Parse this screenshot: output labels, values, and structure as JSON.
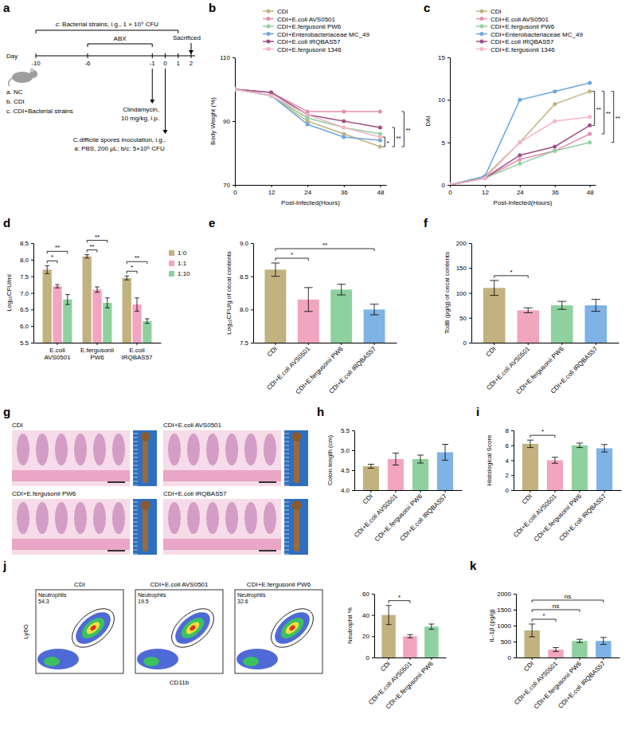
{
  "chart_data": [
    {
      "panel": "a",
      "type": "diagram",
      "groups": [
        "a. NC",
        "b. CDI",
        "c. CDI+Bacterial strains"
      ],
      "day_label": "Day",
      "days": [
        -10,
        -6,
        -1,
        0,
        1,
        2
      ],
      "treatment": "c: Bacterial strains, i.g., 1 × 10⁹ CFU",
      "abx": "ABX",
      "clindamycin": [
        "Clindamycin,",
        "10 mg/kg, i.p."
      ],
      "inoculation": [
        "C.difficile spores inoculation, i.g.,",
        "a: PBS, 200 μL; b/c: 5×10⁶ CFU"
      ],
      "sacrificed": "Sacrificed"
    },
    {
      "panel": "b",
      "type": "line",
      "x_label": "Post-Infected(Hours)",
      "y_label": "Body Weight (%)",
      "x": [
        0,
        12,
        24,
        36,
        48
      ],
      "xlim": [
        0,
        50
      ],
      "xticks": [
        0,
        12,
        24,
        36,
        48
      ],
      "ylim": [
        70,
        110
      ],
      "yticks": [
        70,
        90,
        110
      ],
      "legend": "top",
      "series": [
        {
          "name": "CDI",
          "color": "#c2b280",
          "values": [
            100,
            98,
            90,
            86,
            82
          ]
        },
        {
          "name": "CDI+E.coli AVS0501",
          "color": "#e68fb0",
          "values": [
            100,
            99,
            93,
            93,
            93
          ]
        },
        {
          "name": "CDI+E.fergusonii PW6",
          "color": "#8fd19e",
          "values": [
            100,
            98,
            91,
            88,
            86
          ]
        },
        {
          "name": "CDI+Enterobacteriaceae MC_49",
          "color": "#6ca6dd",
          "values": [
            100,
            98,
            89,
            85,
            84
          ]
        },
        {
          "name": "CDI+E.coli IRQBAS57",
          "color": "#a24f86",
          "values": [
            100,
            99,
            92,
            90,
            88
          ]
        },
        {
          "name": "CDI+E.fergusonii 1346",
          "color": "#f5b5c8",
          "values": [
            100,
            98,
            92,
            88,
            85
          ]
        }
      ],
      "significance": [
        {
          "pair": [
            0,
            5
          ],
          "label": "*"
        },
        {
          "pair": [
            0,
            4
          ],
          "label": "**"
        },
        {
          "pair": [
            0,
            1
          ],
          "label": "**"
        }
      ]
    },
    {
      "panel": "c",
      "type": "line",
      "x_label": "Post-Infected(Hours)",
      "y_label": "DAI",
      "x": [
        0,
        12,
        24,
        36,
        48
      ],
      "xlim": [
        0,
        50
      ],
      "xticks": [
        0,
        12,
        24,
        36,
        48
      ],
      "ylim": [
        0,
        15
      ],
      "yticks": [
        0,
        5,
        10,
        15
      ],
      "legend": "top",
      "series": [
        {
          "name": "CDI",
          "color": "#c2b280",
          "values": [
            0,
            1,
            5,
            9.5,
            11
          ]
        },
        {
          "name": "CDI+E.coli AVS0501",
          "color": "#e68fb0",
          "values": [
            0,
            0.8,
            3,
            4,
            6
          ]
        },
        {
          "name": "CDI+E.fergusonii PW6",
          "color": "#8fd19e",
          "values": [
            0,
            0.8,
            2.5,
            4,
            5
          ]
        },
        {
          "name": "CDI+Enterobacteriaceae MC_49",
          "color": "#6ca6dd",
          "values": [
            0,
            1,
            10,
            11,
            12
          ]
        },
        {
          "name": "CDI+E.coli IRQBAS57",
          "color": "#a24f86",
          "values": [
            0,
            0.8,
            3.5,
            4.5,
            7
          ]
        },
        {
          "name": "CDI+E.fergusonii 1346",
          "color": "#f5b5c8",
          "values": [
            0,
            0.8,
            5,
            7.5,
            8
          ]
        }
      ],
      "significance": [
        {
          "pair": [
            0,
            4
          ],
          "label": "**"
        },
        {
          "pair": [
            0,
            1
          ],
          "label": "**"
        },
        {
          "pair": [
            0,
            2
          ],
          "label": "**"
        }
      ]
    },
    {
      "panel": "d",
      "type": "bar",
      "y_label": "Log₁₀CFU/ml",
      "categories": [
        "E.coli AVS0501",
        "E.fergusonii PW6",
        "E.coli IRQBAS57"
      ],
      "ylim": [
        5.5,
        8.5
      ],
      "yticks": [
        5.5,
        {
          "value": 6,
          "label": "6.0"
        },
        6.5,
        {
          "value": 7,
          "label": "7.0"
        },
        7.5,
        {
          "value": 8,
          "label": "8.0"
        },
        8.5
      ],
      "legend": "right",
      "series": [
        {
          "name": "1:0",
          "color": "#c2b280",
          "values": [
            7.7,
            8.1,
            7.45
          ],
          "errors": [
            0.12,
            0.05,
            0.06
          ]
        },
        {
          "name": "1:1",
          "color": "#f2a5c0",
          "values": [
            7.2,
            7.1,
            6.65
          ],
          "errors": [
            0.05,
            0.08,
            0.2
          ]
        },
        {
          "name": "1:10",
          "color": "#8fd19e",
          "values": [
            6.8,
            6.7,
            6.15
          ],
          "errors": [
            0.15,
            0.15,
            0.07
          ]
        }
      ],
      "significance": [
        {
          "category": 0,
          "pair": [
            0,
            1
          ],
          "label": "*"
        },
        {
          "category": 0,
          "pair": [
            0,
            2
          ],
          "label": "**"
        },
        {
          "category": 1,
          "pair": [
            0,
            1
          ],
          "label": "**"
        },
        {
          "category": 1,
          "pair": [
            0,
            2
          ],
          "label": "**"
        },
        {
          "category": 2,
          "pair": [
            0,
            1
          ],
          "label": "*"
        },
        {
          "category": 2,
          "pair": [
            0,
            2
          ],
          "label": "**"
        }
      ]
    },
    {
      "panel": "e",
      "type": "bar",
      "y_label": "Log₁₀CFU/g of cecal contents",
      "categories": [
        "CDI",
        "CDI+E.coli AVS0501",
        "CDI+E.fergusonii PW6",
        "CDI+E.coli IRQBAS57"
      ],
      "values": [
        8.6,
        8.15,
        8.3,
        8.0
      ],
      "errors": [
        0.1,
        0.18,
        0.08,
        0.08
      ],
      "colors": [
        "#c2b280",
        "#f2a5c0",
        "#8fd19e",
        "#7fb2e5"
      ],
      "ylim": [
        7.5,
        9
      ],
      "yticks": [
        7.5,
        {
          "value": 8,
          "label": "8.0"
        },
        8.5,
        {
          "value": 9,
          "label": "9.0"
        }
      ],
      "significance": [
        {
          "pair": [
            0,
            1
          ],
          "label": "*"
        },
        {
          "pair": [
            0,
            3
          ],
          "label": "**"
        }
      ]
    },
    {
      "panel": "f",
      "type": "bar",
      "y_label": "TcdB (pg/g) of cecal contents",
      "categories": [
        "CDI",
        "CDI+E.coli AVS0501",
        "CDI+E.fergusonii PW6",
        "CDI+E.coli IRQBAS57"
      ],
      "values": [
        110,
        65,
        75,
        75
      ],
      "errors": [
        15,
        5,
        8,
        12
      ],
      "colors": [
        "#c2b280",
        "#f2a5c0",
        "#8fd19e",
        "#7fb2e5"
      ],
      "ylim": [
        0,
        200
      ],
      "yticks": [
        0,
        50,
        100,
        150,
        200
      ],
      "significance": [
        {
          "pair": [
            0,
            1
          ],
          "label": "*"
        }
      ]
    },
    {
      "panel": "g",
      "type": "image",
      "images": [
        "CDI",
        "CDI+E.coli AVS0501",
        "CDI+E.fergusonii PW6",
        "CDI+E.coli IRQBAS57"
      ]
    },
    {
      "panel": "h",
      "type": "bar",
      "y_label": "Colon length (cm)",
      "categories": [
        "CDI",
        "CDI+E.coli AVS0501",
        "CDI+E.fergusonii PW6",
        "CDI+E.coli IRQBAS57"
      ],
      "values": [
        4.6,
        4.78,
        4.78,
        4.95
      ],
      "errors": [
        0.05,
        0.15,
        0.1,
        0.2
      ],
      "colors": [
        "#c2b280",
        "#f2a5c0",
        "#8fd19e",
        "#7fb2e5"
      ],
      "ylim": [
        4,
        5.5
      ],
      "yticks": [
        {
          "value": 4,
          "label": "4.0"
        },
        4.5,
        {
          "value": 5,
          "label": "5.0"
        },
        5.5
      ]
    },
    {
      "panel": "i",
      "type": "bar",
      "y_label": "Histological Score",
      "categories": [
        "CDI",
        "CDI+E.coli AVS0501",
        "CDI+E.fergusonii PW6",
        "CDI+E.coli IRQBAS57"
      ],
      "values": [
        6.2,
        4.0,
        6.0,
        5.6
      ],
      "errors": [
        0.5,
        0.4,
        0.3,
        0.5
      ],
      "colors": [
        "#c2b280",
        "#f2a5c0",
        "#8fd19e",
        "#7fb2e5"
      ],
      "ylim": [
        0,
        8
      ],
      "yticks": [
        0,
        2,
        4,
        6,
        8
      ],
      "significance": [
        {
          "pair": [
            0,
            1
          ],
          "label": "*"
        }
      ]
    },
    {
      "panel": "j",
      "type": "flow",
      "x_label": "CD11b",
      "y_label": "Ly6G",
      "gate": "Neutrophils",
      "plots": [
        {
          "title": "CDI",
          "value": 54.3
        },
        {
          "title": "CDI+E.coli AVS0501",
          "value": 19.5
        },
        {
          "title": "CDI+E.fergusonii PW6",
          "value": 32.6
        }
      ]
    },
    {
      "type": "bar",
      "y_label": "Neutrophil %",
      "categories": [
        "CDI",
        "CDI+E.coli AVS0501",
        "CDI+E.fergusonii PW6"
      ],
      "values": [
        40,
        20,
        29
      ],
      "errors": [
        9,
        1.5,
        2.5
      ],
      "colors": [
        "#c2b280",
        "#f2a5c0",
        "#8fd19e"
      ],
      "ylim": [
        0,
        60
      ],
      "yticks": [
        0,
        20,
        40,
        60
      ],
      "significance": [
        {
          "pair": [
            0,
            1
          ],
          "label": "*"
        }
      ]
    },
    {
      "panel": "k",
      "type": "bar",
      "y_label": "IL-1β (pg/g)",
      "categories": [
        "CDI",
        "CDI+E.coli AVS0501",
        "CDI+E.fergusonii PW6",
        "CDI+E.coli IRQBAS57"
      ],
      "values": [
        850,
        250,
        520,
        520
      ],
      "errors": [
        200,
        60,
        50,
        110
      ],
      "colors": [
        "#c2b280",
        "#f2a5c0",
        "#8fd19e",
        "#7fb2e5"
      ],
      "ylim": [
        0,
        2000
      ],
      "yticks": [
        0,
        500,
        1000,
        1500,
        2000
      ],
      "significance": [
        {
          "pair": [
            0,
            1
          ],
          "label": "*"
        },
        {
          "pair": [
            0,
            2
          ],
          "label": "ns"
        },
        {
          "pair": [
            0,
            3
          ],
          "label": "ns"
        }
      ]
    }
  ]
}
